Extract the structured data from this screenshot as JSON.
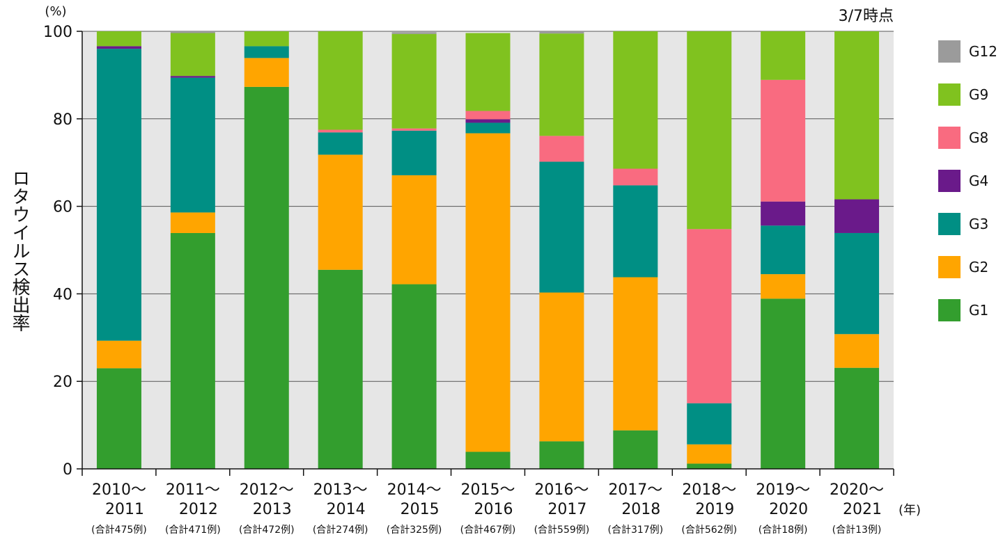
{
  "chart_data": {
    "type": "bar",
    "stacked": true,
    "note": "3/7時点",
    "ylabel": "ロタウイルス検出率",
    "y_unit": "(%)",
    "x_unit": "(年)",
    "ylim": [
      0,
      100
    ],
    "yticks": [
      0,
      20,
      40,
      60,
      80,
      100
    ],
    "grid": true,
    "legend_position": "right",
    "categories": [
      "2010～2011",
      "2011～2012",
      "2012～2013",
      "2013～2014",
      "2014～2015",
      "2015～2016",
      "2016～2017",
      "2017～2018",
      "2018～2019",
      "2019～2020",
      "2020～2021"
    ],
    "category_lines": [
      [
        "2010～",
        "2011"
      ],
      [
        "2011～",
        "2012"
      ],
      [
        "2012～",
        "2013"
      ],
      [
        "2013～",
        "2014"
      ],
      [
        "2014～",
        "2015"
      ],
      [
        "2015～",
        "2016"
      ],
      [
        "2016～",
        "2017"
      ],
      [
        "2017～",
        "2018"
      ],
      [
        "2018～",
        "2019"
      ],
      [
        "2019～",
        "2020"
      ],
      [
        "2020～",
        "2021"
      ]
    ],
    "counts": [
      "(合計475例)",
      "(合計471例)",
      "(合計472例)",
      "(合計274例)",
      "(合計325例)",
      "(合計467例)",
      "(合計559例)",
      "(合計317例)",
      "(合計562例)",
      "(合計18例)",
      "(合計13例)"
    ],
    "series": [
      {
        "name": "G1",
        "color": "#339e2e",
        "values": [
          23.0,
          53.9,
          87.3,
          45.5,
          42.2,
          3.9,
          6.3,
          8.8,
          1.2,
          38.9,
          23.1
        ]
      },
      {
        "name": "G2",
        "color": "#ffa500",
        "values": [
          6.3,
          4.7,
          6.6,
          26.3,
          24.9,
          72.8,
          34.0,
          35.0,
          4.4,
          5.6,
          7.7
        ]
      },
      {
        "name": "G3",
        "color": "#008f84",
        "values": [
          66.7,
          30.8,
          2.7,
          5.1,
          10.2,
          2.4,
          29.9,
          21.0,
          9.4,
          11.1,
          23.1
        ]
      },
      {
        "name": "G4",
        "color": "#6a1a8a",
        "values": [
          0.6,
          0.4,
          0.0,
          0.0,
          0.0,
          0.8,
          0.0,
          0.0,
          0.0,
          5.5,
          7.7
        ]
      },
      {
        "name": "G8",
        "color": "#f96b80",
        "values": [
          0.0,
          0.0,
          0.0,
          0.6,
          0.5,
          1.9,
          5.9,
          3.8,
          39.8,
          27.8,
          0.0
        ]
      },
      {
        "name": "G9",
        "color": "#80c21f",
        "values": [
          3.4,
          9.8,
          3.4,
          22.5,
          21.6,
          17.8,
          23.4,
          31.4,
          45.2,
          11.1,
          38.4
        ]
      },
      {
        "name": "G12",
        "color": "#9b9b9b",
        "values": [
          0.0,
          0.4,
          0.0,
          0.0,
          0.4,
          0.0,
          0.5,
          0.0,
          0.0,
          0.0,
          0.0
        ]
      }
    ],
    "legend_order": [
      "G12",
      "G9",
      "G8",
      "G4",
      "G3",
      "G2",
      "G1"
    ]
  }
}
